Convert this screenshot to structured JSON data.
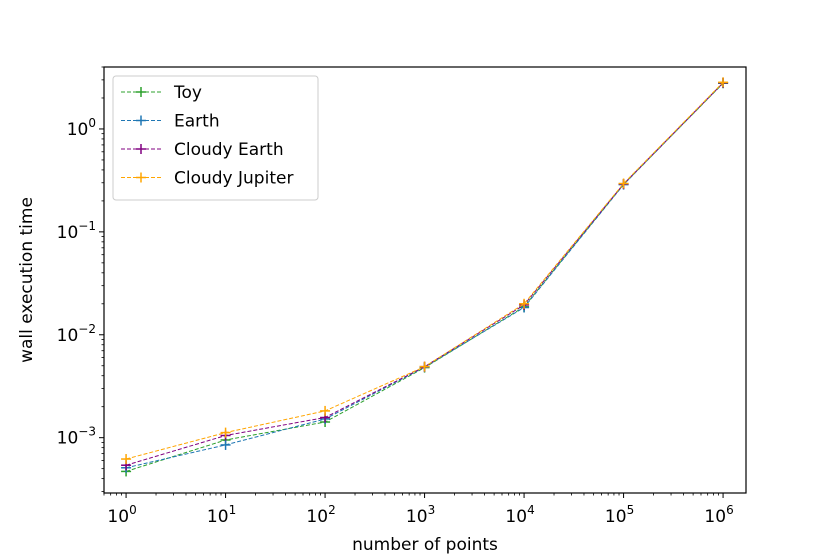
{
  "chart_data": {
    "type": "line",
    "title": "",
    "xlabel": "number of points",
    "ylabel": "wall execution time",
    "xscale": "log",
    "yscale": "log",
    "xlim": [
      0.6,
      1700000
    ],
    "ylim": [
      0.00029,
      4.0
    ],
    "grid": false,
    "legend_position": "top-left",
    "x_ticks": [
      {
        "value": 1,
        "base": "10",
        "exp": "0"
      },
      {
        "value": 10,
        "base": "10",
        "exp": "1"
      },
      {
        "value": 100,
        "base": "10",
        "exp": "2"
      },
      {
        "value": 1000,
        "base": "10",
        "exp": "3"
      },
      {
        "value": 10000,
        "base": "10",
        "exp": "4"
      },
      {
        "value": 100000,
        "base": "10",
        "exp": "5"
      },
      {
        "value": 1000000,
        "base": "10",
        "exp": "6"
      }
    ],
    "y_ticks": [
      {
        "value": 0.001,
        "base": "10",
        "exp": "−3"
      },
      {
        "value": 0.01,
        "base": "10",
        "exp": "−2"
      },
      {
        "value": 0.1,
        "base": "10",
        "exp": "−1"
      },
      {
        "value": 1,
        "base": "10",
        "exp": "0"
      }
    ],
    "x": [
      1,
      10,
      100,
      1000,
      10000,
      100000,
      1000000
    ],
    "series": [
      {
        "name": "Toy",
        "color": "#2ca02c",
        "values": [
          0.00047,
          0.00095,
          0.00142,
          0.0048,
          0.0187,
          0.29,
          2.78
        ]
      },
      {
        "name": "Earth",
        "color": "#1f77b4",
        "values": [
          0.00051,
          0.00085,
          0.00152,
          0.00485,
          0.0184,
          0.288,
          2.8
        ]
      },
      {
        "name": "Cloudy Earth",
        "color": "#800080",
        "values": [
          0.00054,
          0.00105,
          0.00157,
          0.0049,
          0.0195,
          0.292,
          2.81
        ]
      },
      {
        "name": "Cloudy Jupiter",
        "color": "#ffa500",
        "values": [
          0.00062,
          0.00112,
          0.00182,
          0.0049,
          0.02,
          0.295,
          2.84
        ]
      }
    ]
  }
}
